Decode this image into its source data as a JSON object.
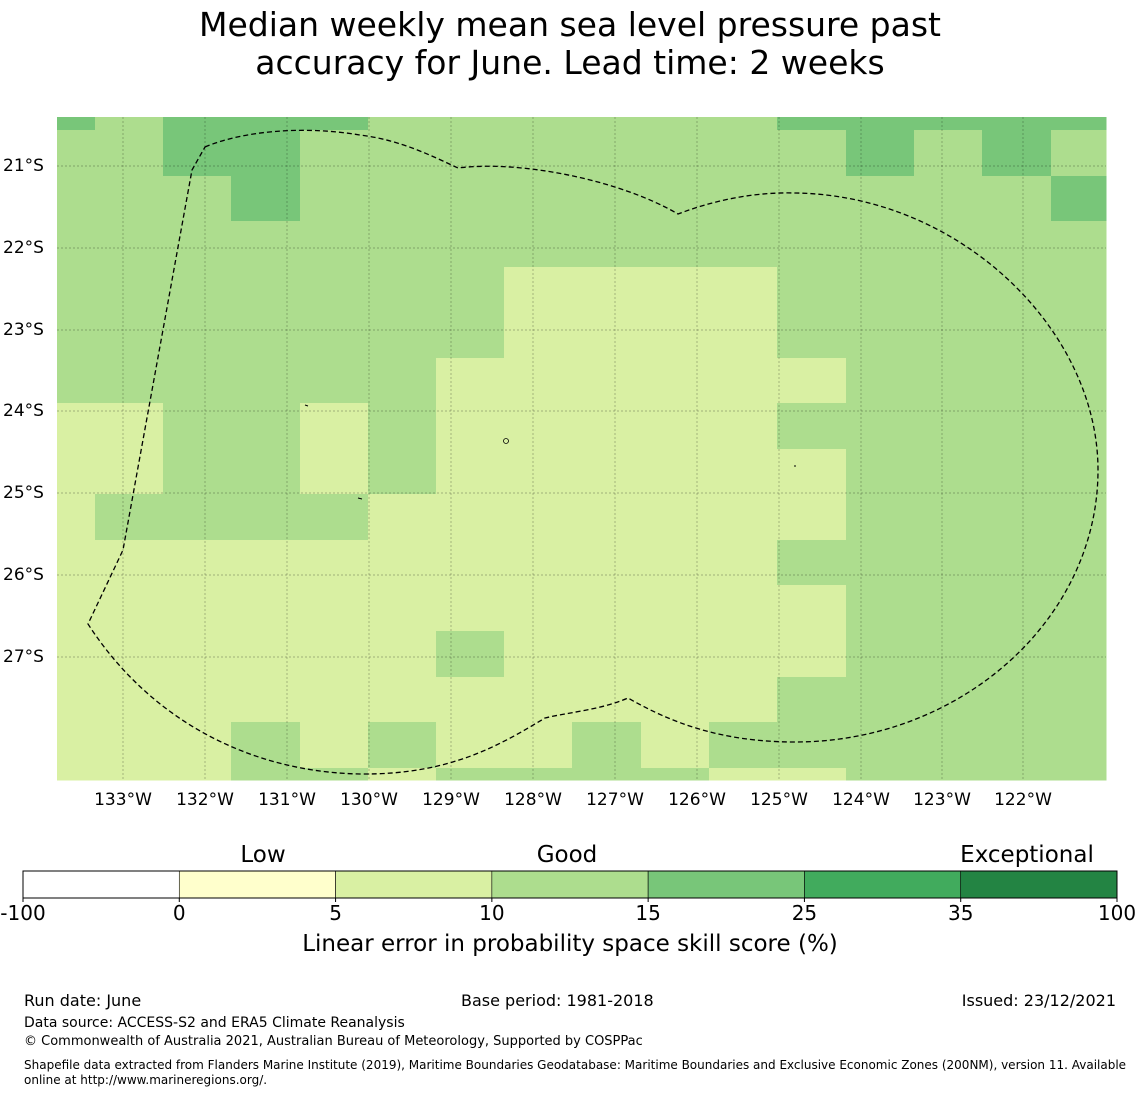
{
  "title": {
    "line1": "Median weekly mean sea level pressure past",
    "line2": "accuracy for June. Lead time: 2 weeks"
  },
  "map": {
    "lon_ticks": [
      "133°W",
      "132°W",
      "131°W",
      "130°W",
      "129°W",
      "128°W",
      "127°W",
      "126°W",
      "125°W",
      "124°W",
      "123°W",
      "122°W"
    ],
    "lat_ticks": [
      "21°S",
      "22°S",
      "23°S",
      "24°S",
      "25°S",
      "26°S",
      "27°S"
    ],
    "boundary_style": "dashed",
    "gridlines": true
  },
  "colorbar": {
    "categories": [
      "Low",
      "Good",
      "Exceptional"
    ],
    "bounds": [
      "-100",
      "0",
      "5",
      "10",
      "15",
      "25",
      "35",
      "100"
    ],
    "colors": [
      "#ffffff",
      "#ffffcc",
      "#d9f0a3",
      "#addd8e",
      "#78c679",
      "#41ab5d",
      "#238443"
    ],
    "label": "Linear error in probability space skill score (%)"
  },
  "footer": {
    "run_date": "Run date: June",
    "base_period": "Base period: 1981-2018",
    "issued": "Issued: 23/12/2021",
    "data_source": "Data source: ACCESS-S2 and ERA5 Climate Reanalysis",
    "copyright": "© Commonwealth of Australia 2021, Australian Bureau of Meteorology, Supported by COSPPac",
    "shapefile_line1": "Shapefile data extracted from Flanders Marine Institute (2019), Maritime Boundaries Geodatabase: Maritime Boundaries and Exclusive Economic Zones (200NM), version 11. Available",
    "shapefile_line2": "online at http://www.marineregions.org/."
  }
}
